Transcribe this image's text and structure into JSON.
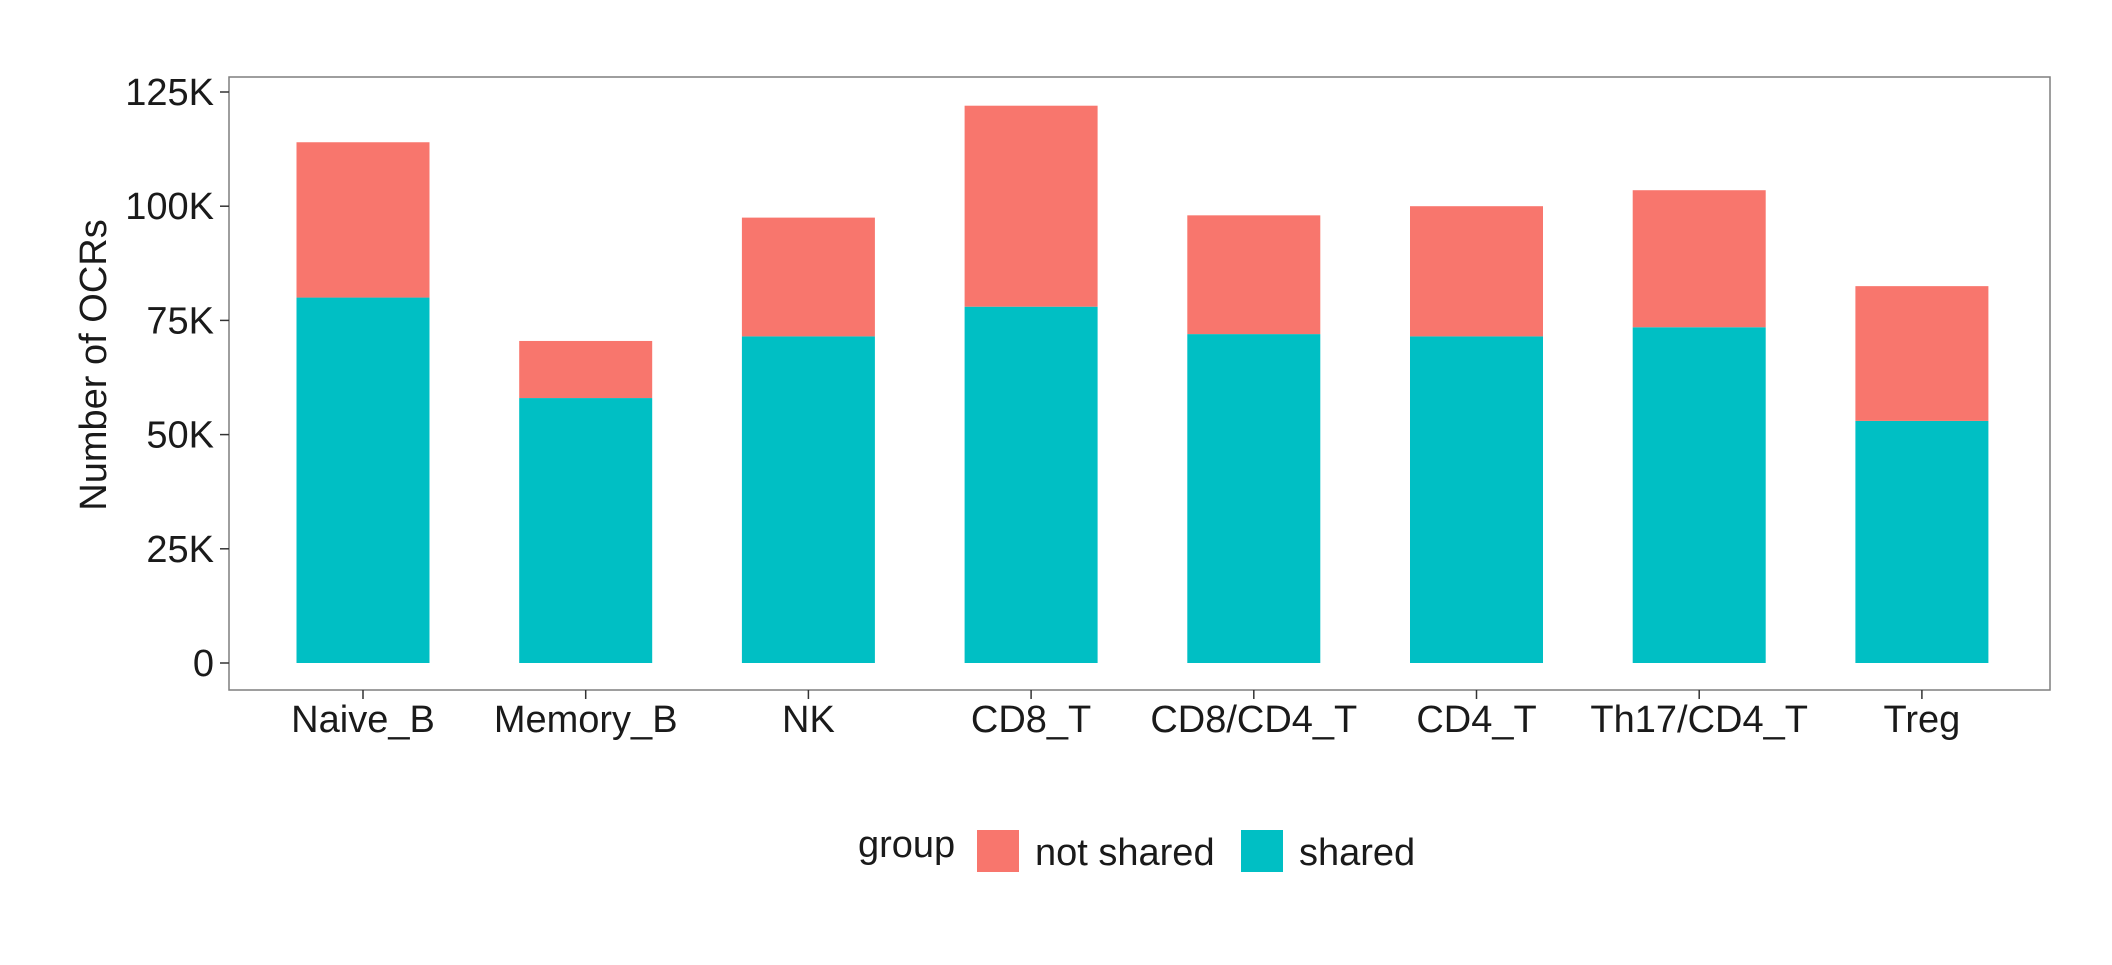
{
  "chart_data": {
    "type": "bar",
    "stacked": true,
    "title": "",
    "xlabel": "",
    "ylabel": "Number of OCRs",
    "ylim": [
      0,
      125000
    ],
    "yticks": [
      0,
      25000,
      50000,
      75000,
      100000,
      125000
    ],
    "ytick_labels": [
      "0",
      "25K",
      "50K",
      "75K",
      "100K",
      "125K"
    ],
    "grid": false,
    "categories": [
      "Naive_B",
      "Memory_B",
      "NK",
      "CD8_T",
      "CD8/CD4_T",
      "CD4_T",
      "Th17/CD4_T",
      "Treg"
    ],
    "series": [
      {
        "name": "shared",
        "color": "#00BFC4",
        "values": [
          80000,
          58000,
          71500,
          78000,
          72000,
          71500,
          73500,
          53000
        ]
      },
      {
        "name": "not shared",
        "color": "#F8766D",
        "values": [
          34000,
          12500,
          26000,
          44000,
          26000,
          28500,
          30000,
          29500
        ]
      }
    ],
    "legend": {
      "title": "group",
      "position": "bottom",
      "entries": [
        {
          "label": "not shared",
          "color": "#F8766D"
        },
        {
          "label": "shared",
          "color": "#00BFC4"
        }
      ]
    }
  }
}
